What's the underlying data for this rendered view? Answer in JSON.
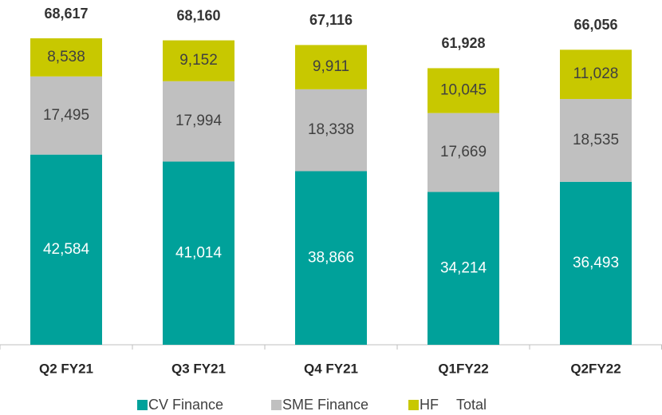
{
  "chart_data": {
    "type": "stacked_bar",
    "categories": [
      "Q2 FY21",
      "Q3 FY21",
      "Q4 FY21",
      "Q1FY22",
      "Q2FY22"
    ],
    "series": [
      {
        "name": "CV Finance",
        "color": "#00a19a",
        "label_color": "#ffffff",
        "values": [
          42584,
          41014,
          38866,
          34214,
          36493
        ],
        "value_labels": [
          "42,584",
          "41,014",
          "38,866",
          "34,214",
          "36,493"
        ]
      },
      {
        "name": "SME Finance",
        "color": "#c0c0c0",
        "label_color": "#404040",
        "values": [
          17495,
          17994,
          18338,
          17669,
          18535
        ],
        "value_labels": [
          "17,495",
          "17,994",
          "18,338",
          "17,669",
          "18,535"
        ]
      },
      {
        "name": "HF",
        "color": "#c8c800",
        "label_color": "#404040",
        "values": [
          8538,
          9152,
          9911,
          10045,
          11028
        ],
        "value_labels": [
          "8,538",
          "9,152",
          "9,911",
          "10,045",
          "11,028"
        ]
      },
      {
        "name": "Total",
        "color": "#ffffff",
        "label_color": "#333333",
        "mark": "label",
        "values": [
          68617,
          68160,
          67116,
          61928,
          66056
        ],
        "value_labels": [
          "68,617",
          "68,160",
          "67,116",
          "61,928",
          "66,056"
        ]
      }
    ],
    "legend": "bottom"
  }
}
